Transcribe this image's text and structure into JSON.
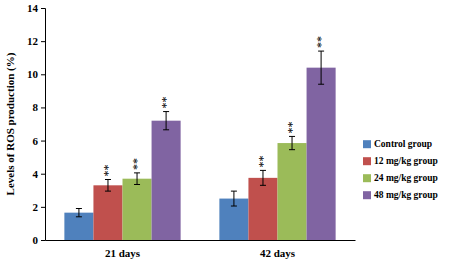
{
  "chart_data": {
    "type": "bar",
    "y_label": "Levels of ROS production (%)",
    "categories": [
      "21 days",
      "42 days"
    ],
    "series": [
      {
        "name": "Control group",
        "color": "#4f81bd",
        "values": [
          1.65,
          2.5
        ],
        "errors": [
          0.25,
          0.45
        ]
      },
      {
        "name": "12 mg/kg group",
        "color": "#c0504d",
        "values": [
          3.3,
          3.75
        ],
        "errors": [
          0.35,
          0.45
        ],
        "annotations": [
          "**",
          "**"
        ]
      },
      {
        "name": "24 mg/kg group",
        "color": "#9bbb59",
        "values": [
          3.7,
          5.85
        ],
        "errors": [
          0.35,
          0.4
        ],
        "annotations": [
          "**",
          "**"
        ]
      },
      {
        "name": "48 mg/kg group",
        "color": "#8064a2",
        "values": [
          7.2,
          10.4
        ],
        "errors": [
          0.55,
          1.0
        ],
        "annotations": [
          "**",
          "**"
        ]
      }
    ],
    "ylim": [
      0,
      14
    ],
    "yticks": [
      0,
      2,
      4,
      6,
      8,
      10,
      12,
      14
    ],
    "legend": "right"
  }
}
